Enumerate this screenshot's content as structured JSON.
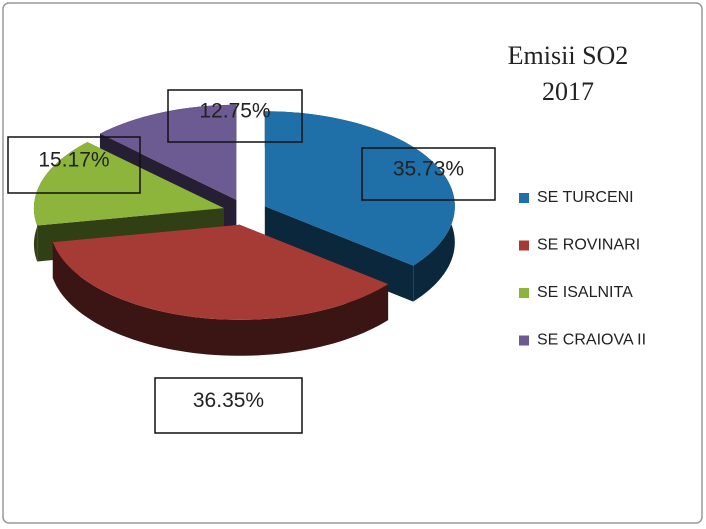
{
  "chart_data": {
    "type": "pie3d",
    "title": [
      "Emisii SO2",
      "2017"
    ],
    "categories": [
      "SE TURCENI",
      "SE ROVINARI",
      "SE ISALNITA",
      "SE CRAIOVA II"
    ],
    "values": [
      35.73,
      36.35,
      15.17,
      12.75
    ],
    "value_labels": [
      "35.73%",
      "36.35%",
      "15.17%",
      "12.75%"
    ],
    "colors": [
      "#1f6fa8",
      "#a63b36",
      "#8db43b",
      "#6c5a92"
    ],
    "legend": "right"
  }
}
